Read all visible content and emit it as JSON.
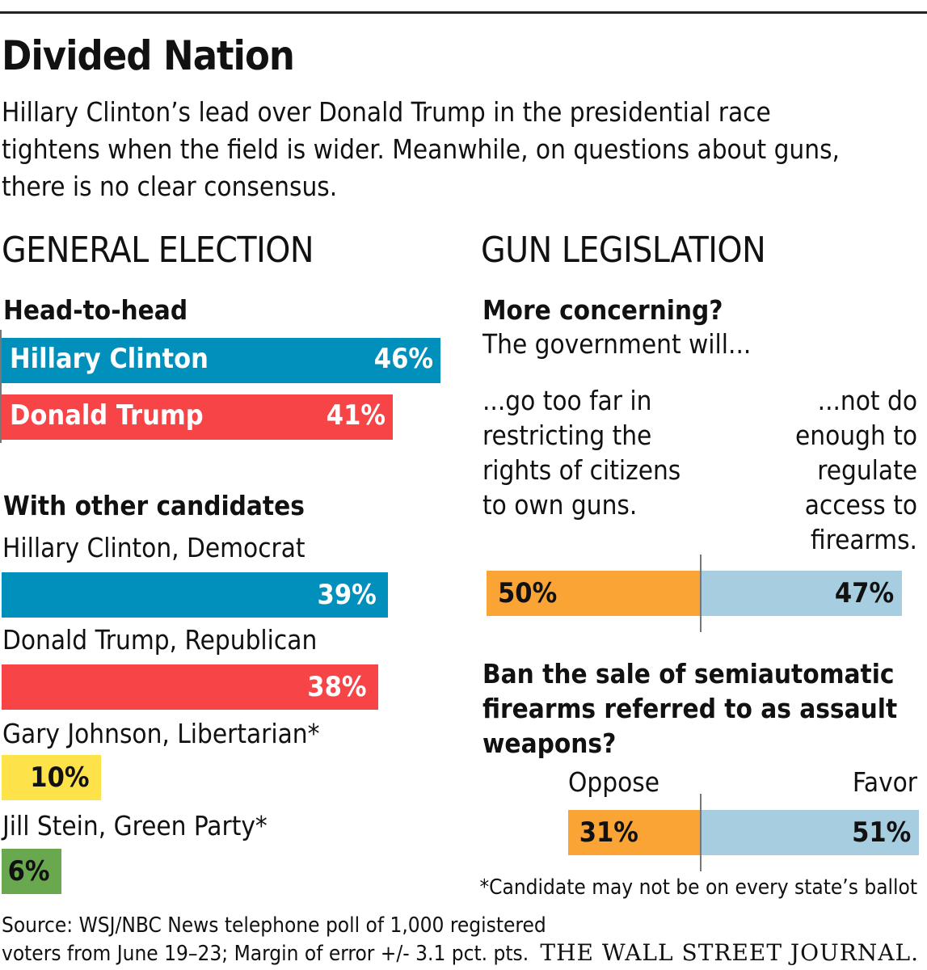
{
  "title": "Divided Nation",
  "subtitle": "Hillary Clinton’s lead over Donald Trump in the presidential race tightens when the field is wider. Meanwhile, on questions about guns, there is no clear consensus.",
  "colors": {
    "clinton": "#0090bb",
    "trump": "#f64447",
    "johnson": "#fde24a",
    "stein": "#6aa84f",
    "orange": "#f9a435",
    "lightblue": "#a6cde0"
  },
  "chart_data": [
    {
      "type": "bar",
      "title": "GENERAL ELECTION",
      "subtitle": "Head-to-head",
      "categories": [
        "Hillary Clinton",
        "Donald Trump"
      ],
      "values": [
        46,
        41
      ],
      "labels": [
        "46%",
        "41%"
      ]
    },
    {
      "type": "bar",
      "subtitle": "With other candidates",
      "categories": [
        "Hillary Clinton, Democrat",
        "Donald Trump, Republican",
        "Gary Johnson, Libertarian*",
        "Jill Stein, Green Party*"
      ],
      "values": [
        39,
        38,
        10,
        6
      ],
      "labels": [
        "39%",
        "38%",
        "10%",
        "6%"
      ]
    },
    {
      "type": "bar",
      "title": "GUN LEGISLATION",
      "question": "More concerning?",
      "question2": "The government will...",
      "left_label": "...go too far in restricting the rights of citizens to own guns.",
      "right_label": "...not do enough to regulate access to firearms.",
      "values": [
        50,
        47
      ],
      "labels": [
        "50%",
        "47%"
      ]
    },
    {
      "type": "bar",
      "question": "Ban the sale of semiautomatic firearms referred to as assault weapons?",
      "left_label": "Oppose",
      "right_label": "Favor",
      "values": [
        31,
        51
      ],
      "labels": [
        "31%",
        "51%"
      ]
    }
  ],
  "footnote": "*Candidate may not be on every state’s ballot",
  "source": "Source: WSJ/NBC News telephone poll of 1,000 registered voters from June 19–23; Margin of error +/- 3.1 pct. pts.",
  "logo": "THE WALL STREET JOURNAL."
}
